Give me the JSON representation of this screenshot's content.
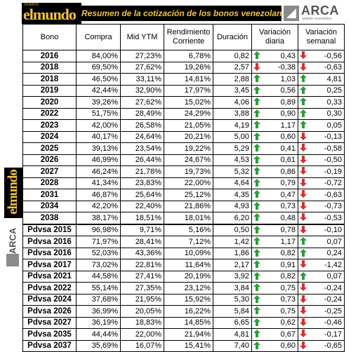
{
  "header": {
    "brand_top": "DIARIO",
    "brand": "elmundo",
    "title": "Resumen de la cotización de los bonos venezolanos",
    "arca": "ARCA",
    "arca_sub": "análisis económico"
  },
  "colors": {
    "up": "#2e9d3a",
    "down": "#d8312b",
    "brand_yellow": "#f3c23a"
  },
  "columns": [
    "Bono",
    "Compra",
    "Mid YTM",
    "Rendimiento Corriente",
    "Duración",
    "Variación diaria",
    "Variación semanal"
  ],
  "rows": [
    {
      "bono": "2016",
      "compra": "84,00%",
      "ytm": "27,23%",
      "rend": "6,78%",
      "dur": "0,82",
      "diaria": "0,43",
      "d_dir": "up",
      "semanal": "-0,56",
      "s_dir": "down"
    },
    {
      "bono": "2018",
      "compra": "69,50%",
      "ytm": "27,62%",
      "rend": "19,26%",
      "dur": "2,57",
      "diaria": "-0,38",
      "d_dir": "down",
      "semanal": "-0,63",
      "s_dir": "down"
    },
    {
      "bono": "2018",
      "compra": "46,50%",
      "ytm": "33,11%",
      "rend": "14,81%",
      "dur": "2,88",
      "diaria": "1,03",
      "d_dir": "up",
      "semanal": "4,81",
      "s_dir": "up"
    },
    {
      "bono": "2019",
      "compra": "42,44%",
      "ytm": "32,90%",
      "rend": "17,97%",
      "dur": "3,45",
      "diaria": "0,56",
      "d_dir": "up",
      "semanal": "0,25",
      "s_dir": "up"
    },
    {
      "bono": "2020",
      "compra": "39,26%",
      "ytm": "27,62%",
      "rend": "15,02%",
      "dur": "4,06",
      "diaria": "0,89",
      "d_dir": "up",
      "semanal": "0,33",
      "s_dir": "up"
    },
    {
      "bono": "2022",
      "compra": "51,75%",
      "ytm": "28,49%",
      "rend": "24,29%",
      "dur": "3,88",
      "diaria": "0,90",
      "d_dir": "up",
      "semanal": "0,30",
      "s_dir": "up"
    },
    {
      "bono": "2023",
      "compra": "42,00%",
      "ytm": "26,58%",
      "rend": "21,05%",
      "dur": "4,19",
      "diaria": "1,17",
      "d_dir": "up",
      "semanal": "0,05",
      "s_dir": "up"
    },
    {
      "bono": "2024",
      "compra": "40,17%",
      "ytm": "24,64%",
      "rend": "20,21%",
      "dur": "5,00",
      "diaria": "0,60",
      "d_dir": "up",
      "semanal": "-0,13",
      "s_dir": "down"
    },
    {
      "bono": "2025",
      "compra": "39,13%",
      "ytm": "23,54%",
      "rend": "19,22%",
      "dur": "5,29",
      "diaria": "0,41",
      "d_dir": "up",
      "semanal": "-0,58",
      "s_dir": "down"
    },
    {
      "bono": "2026",
      "compra": "46,99%",
      "ytm": "26,44%",
      "rend": "24,67%",
      "dur": "4,53",
      "diaria": "0,61",
      "d_dir": "up",
      "semanal": "-0,50",
      "s_dir": "down"
    },
    {
      "bono": "2027",
      "compra": "46,24%",
      "ytm": "21,78%",
      "rend": "19,73%",
      "dur": "5,32",
      "diaria": "0,86",
      "d_dir": "up",
      "semanal": "-0,19",
      "s_dir": "down"
    },
    {
      "bono": "2028",
      "compra": "41,34%",
      "ytm": "23,83%",
      "rend": "22,00%",
      "dur": "4,64",
      "diaria": "0,79",
      "d_dir": "up",
      "semanal": "-0,72",
      "s_dir": "down"
    },
    {
      "bono": "2031",
      "compra": "46,87%",
      "ytm": "25,64%",
      "rend": "25,12%",
      "dur": "4,35",
      "diaria": "0,47",
      "d_dir": "up",
      "semanal": "-0,63",
      "s_dir": "down"
    },
    {
      "bono": "2034",
      "compra": "42,20%",
      "ytm": "22,40%",
      "rend": "21,86%",
      "dur": "4,93",
      "diaria": "0,73",
      "d_dir": "up",
      "semanal": "-0,73",
      "s_dir": "down"
    },
    {
      "bono": "2038",
      "compra": "38,17%",
      "ytm": "18,51%",
      "rend": "18,01%",
      "dur": "6,20",
      "diaria": "0,48",
      "d_dir": "up",
      "semanal": "-0,53",
      "s_dir": "down"
    },
    {
      "bono": "Pdvsa 2015",
      "compra": "96,98%",
      "ytm": "9,71%",
      "rend": "5,16%",
      "dur": "0,50",
      "diaria": "0,78",
      "d_dir": "up",
      "semanal": "-0,10",
      "s_dir": "down",
      "sep": true
    },
    {
      "bono": "Pdvsa 2016",
      "compra": "71,97%",
      "ytm": "28,41%",
      "rend": "7,12%",
      "dur": "1,42",
      "diaria": "1,17",
      "d_dir": "up",
      "semanal": "0,07",
      "s_dir": "up"
    },
    {
      "bono": "Pdvsa 2016",
      "compra": "52,03%",
      "ytm": "43,36%",
      "rend": "10,09%",
      "dur": "1,86",
      "diaria": "0,82",
      "d_dir": "up",
      "semanal": "0,24",
      "s_dir": "up"
    },
    {
      "bono": "Pdvsa 2017",
      "compra": "73,02%",
      "ytm": "22,81%",
      "rend": "11,64%",
      "dur": "2,17",
      "diaria": "0,91",
      "d_dir": "up",
      "semanal": "-1,42",
      "s_dir": "down"
    },
    {
      "bono": "Pdvsa 2021",
      "compra": "44,58%",
      "ytm": "27,41%",
      "rend": "20,19%",
      "dur": "3,92",
      "diaria": "0,82",
      "d_dir": "up",
      "semanal": "0,07",
      "s_dir": "up"
    },
    {
      "bono": "Pdvsa 2022",
      "compra": "55,14%",
      "ytm": "27,35%",
      "rend": "23,12%",
      "dur": "3,84",
      "diaria": "0,75",
      "d_dir": "up",
      "semanal": "-0,24",
      "s_dir": "down"
    },
    {
      "bono": "Pdvsa 2024",
      "compra": "37,68%",
      "ytm": "21,95%",
      "rend": "15,92%",
      "dur": "5,30",
      "diaria": "0,73",
      "d_dir": "up",
      "semanal": "-0,24",
      "s_dir": "down"
    },
    {
      "bono": "Pdvsa 2026",
      "compra": "36,99%",
      "ytm": "20,05%",
      "rend": "16,22%",
      "dur": "5,84",
      "diaria": "0,75",
      "d_dir": "up",
      "semanal": "-0,25",
      "s_dir": "down"
    },
    {
      "bono": "Pdvsa 2027",
      "compra": "36,19%",
      "ytm": "18,83%",
      "rend": "14,85%",
      "dur": "6,65",
      "diaria": "0,62",
      "d_dir": "up",
      "semanal": "-0,46",
      "s_dir": "down"
    },
    {
      "bono": "Pdvsa 2035",
      "compra": "44,44%",
      "ytm": "22,00%",
      "rend": "21,94%",
      "dur": "4,81",
      "diaria": "0,67",
      "d_dir": "up",
      "semanal": "-0,17",
      "s_dir": "down"
    },
    {
      "bono": "Pdvsa 2037",
      "compra": "35,69%",
      "ytm": "16,07%",
      "rend": "15,41%",
      "dur": "7,40",
      "diaria": "0,60",
      "d_dir": "up",
      "semanal": "-0,65",
      "s_dir": "down"
    }
  ]
}
